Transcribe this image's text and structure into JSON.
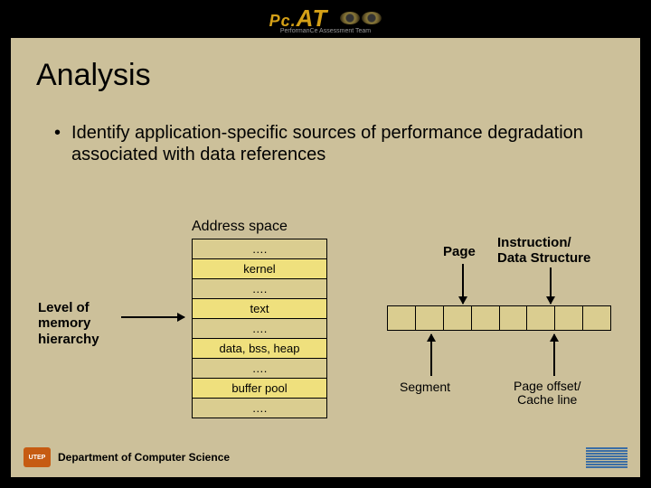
{
  "banner": {
    "brand_prefix": "Pc.",
    "brand_suffix": "AT",
    "tagline": "PerformanCe Assessment Team"
  },
  "title": "Analysis",
  "bullet": "Identify application-specific sources of performance degradation associated with data references",
  "diagram": {
    "address_space_label": "Address space",
    "level_label_l1": "Level of",
    "level_label_l2": "memory",
    "level_label_l3": "hierarchy",
    "stack_rows": [
      {
        "text": "….",
        "cls": "row-beige"
      },
      {
        "text": "kernel",
        "cls": "row-yellow"
      },
      {
        "text": "….",
        "cls": "row-beige"
      },
      {
        "text": "text",
        "cls": "row-yellow"
      },
      {
        "text": "….",
        "cls": "row-beige"
      },
      {
        "text": "data, bss, heap",
        "cls": "row-yellow"
      },
      {
        "text": "….",
        "cls": "row-beige"
      },
      {
        "text": "buffer pool",
        "cls": "row-yellow"
      },
      {
        "text": "….",
        "cls": "row-beige"
      }
    ],
    "page_label": "Page",
    "instr_label_l1": "Instruction/",
    "instr_label_l2": "Data Structure",
    "hbar_cells": 8,
    "segment_label": "Segment",
    "offset_label_l1": "Page offset/",
    "offset_label_l2": "Cache line"
  },
  "footer": {
    "utep": "UTEP",
    "department": "Department of Computer Science",
    "ibm_bars": 8
  },
  "colors": {
    "slide_bg": "#ccc09a",
    "row_beige": "#dacd90",
    "row_yellow": "#efe07d",
    "ibm_blue": "#3b6ea5",
    "banner_gold": "#d4a017"
  }
}
